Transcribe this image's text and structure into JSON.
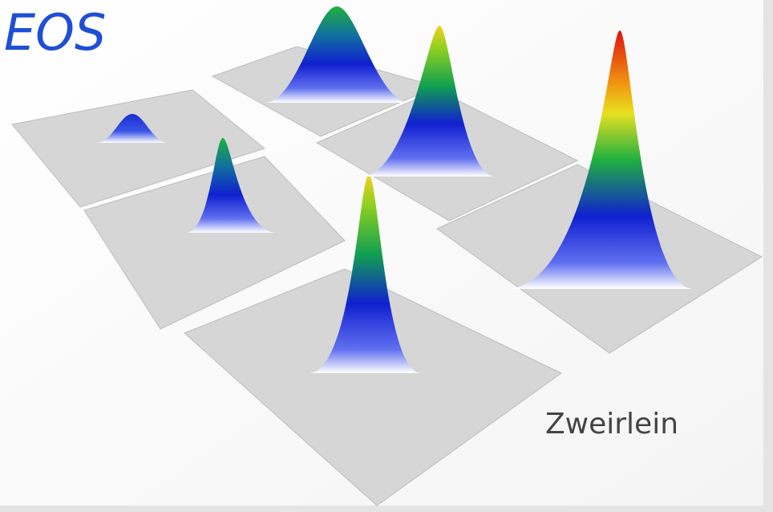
{
  "title": "EOS",
  "credit": "Zweirlein"
}
